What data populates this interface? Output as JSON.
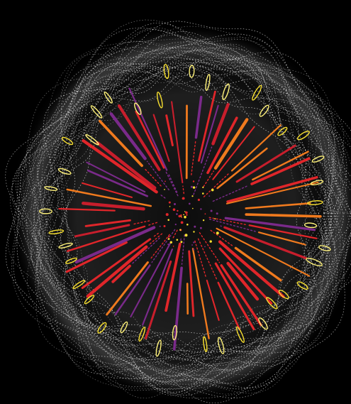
{
  "scene": {
    "subject": "firework burst",
    "background_color": "#000000",
    "halo_color": "#ffffff",
    "palette": {
      "red": "#e0262a",
      "crimson": "#c81e2c",
      "orange": "#f07a1e",
      "purple": "#7a2a8a",
      "yellow": "#f8e030",
      "pale_yellow": "#fff27a"
    }
  }
}
